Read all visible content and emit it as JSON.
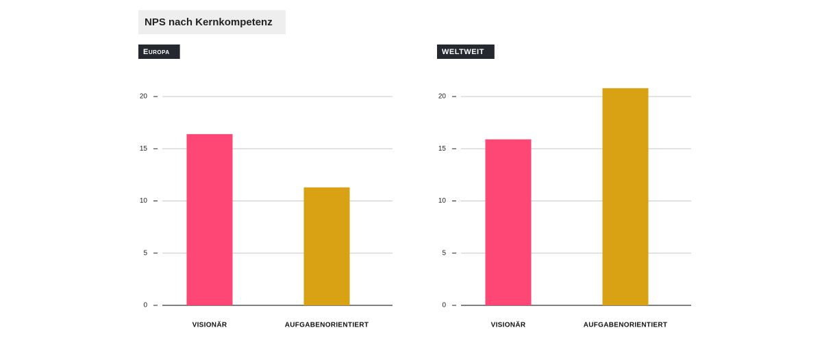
{
  "title": "NPS nach Kernkompetenz",
  "chart_data": [
    {
      "type": "bar",
      "title": "Europa",
      "categories": [
        "VISIONÄR",
        "AUFGABENORIENTIERT"
      ],
      "values": [
        16.4,
        11.3
      ],
      "colors": [
        "#ff4775",
        "#d9a214"
      ],
      "ylim": [
        0,
        22
      ],
      "yticks": [
        0,
        5,
        10,
        15,
        20
      ],
      "grid": true
    },
    {
      "type": "bar",
      "title": "WELTWEIT",
      "categories": [
        "VISIONÄR",
        "AUFGABENORIENTIERT"
      ],
      "values": [
        15.9,
        20.8
      ],
      "colors": [
        "#ff4775",
        "#d9a214"
      ],
      "ylim": [
        0,
        22
      ],
      "yticks": [
        0,
        5,
        10,
        15,
        20
      ],
      "grid": true
    }
  ]
}
